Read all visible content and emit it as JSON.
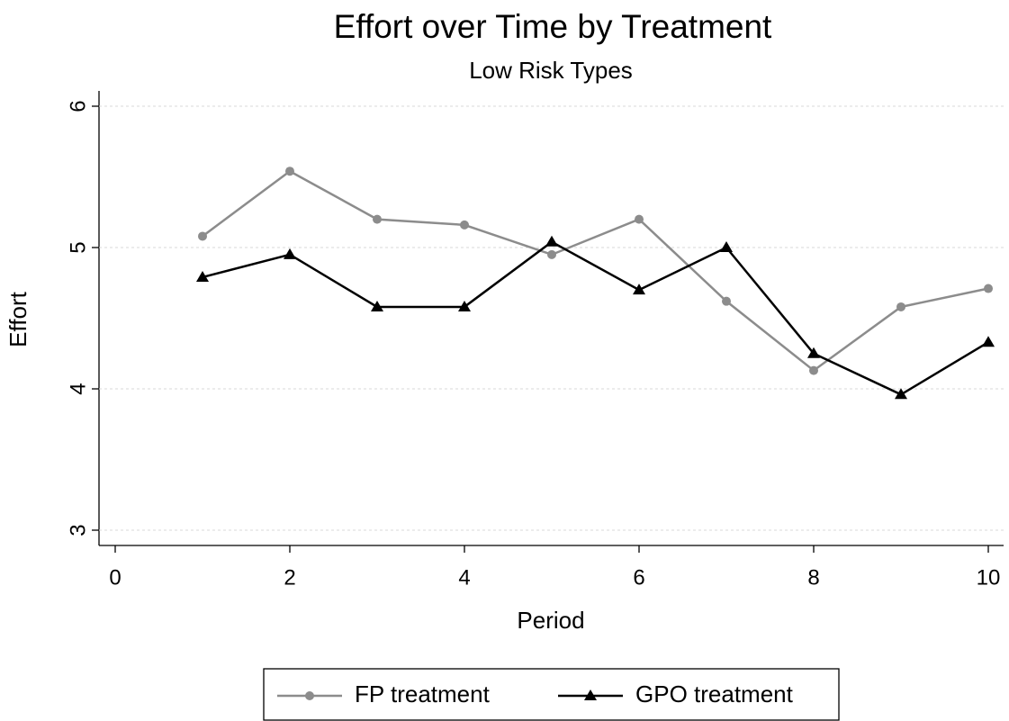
{
  "chart_data": {
    "type": "line",
    "title": "Effort over Time by Treatment",
    "subtitle": "Low Risk Types",
    "x_label": "Period",
    "y_label": "Effort",
    "x": [
      1,
      2,
      3,
      4,
      5,
      6,
      7,
      8,
      9,
      10
    ],
    "series": [
      {
        "name": "FP treatment",
        "color": "#8c8c8c",
        "marker": "circle",
        "values": [
          5.08,
          5.54,
          5.2,
          5.16,
          4.95,
          5.2,
          4.62,
          4.13,
          4.58,
          4.71
        ]
      },
      {
        "name": "GPO treatment",
        "color": "#000000",
        "marker": "triangle",
        "values": [
          4.79,
          4.95,
          4.58,
          4.58,
          5.04,
          4.7,
          5.0,
          4.25,
          3.96,
          4.33
        ]
      }
    ],
    "xlim": [
      0,
      10
    ],
    "xticks": [
      0,
      2,
      4,
      6,
      8,
      10
    ],
    "ylim": [
      3,
      6
    ],
    "yticks": [
      3,
      4,
      5,
      6
    ],
    "grid": true,
    "legend": "bottom"
  }
}
